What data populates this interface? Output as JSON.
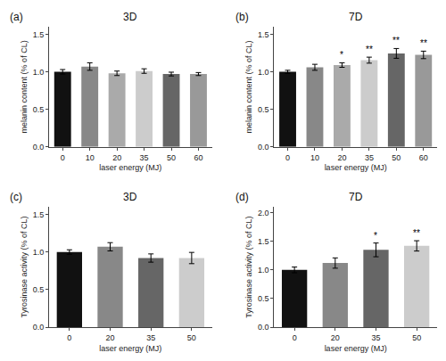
{
  "chart_data": [
    {
      "type": "bar",
      "title": "3D",
      "subtitle": "(a)",
      "xlabel": "laser energy (MJ)",
      "ylabel": "melanin content (% of CL)",
      "categories": [
        "0",
        "10",
        "20",
        "35",
        "50",
        "60"
      ],
      "values": [
        1.0,
        1.07,
        0.98,
        1.01,
        0.97,
        0.97
      ],
      "errors": [
        0.03,
        0.05,
        0.03,
        0.03,
        0.025,
        0.02
      ],
      "colors": [
        "#111111",
        "#888888",
        "#aaaaaa",
        "#cccccc",
        "#666666",
        "#999999"
      ],
      "annotations": [],
      "ylim": [
        0,
        1.6
      ],
      "yticks": [
        {
          "value": 0,
          "label": "0.0"
        },
        0.5,
        {
          "value": 1,
          "label": "1.0"
        },
        1.5
      ],
      "grid": false
    },
    {
      "type": "bar",
      "title": "7D",
      "subtitle": "(b)",
      "xlabel": "laser energy (MJ)",
      "ylabel": "melanin content (% of CL)",
      "categories": [
        "0",
        "10",
        "20",
        "35",
        "50",
        "60"
      ],
      "values": [
        1.0,
        1.06,
        1.09,
        1.155,
        1.245,
        1.225
      ],
      "errors": [
        0.02,
        0.04,
        0.03,
        0.04,
        0.065,
        0.05
      ],
      "colors": [
        "#111111",
        "#888888",
        "#aaaaaa",
        "#cccccc",
        "#666666",
        "#999999"
      ],
      "annotations": [
        {
          "text": "*",
          "category": "20"
        },
        {
          "text": "**",
          "category": "35"
        },
        {
          "text": "**",
          "category": "50"
        },
        {
          "text": "**",
          "category": "60"
        }
      ],
      "ylim": [
        0,
        1.6
      ],
      "yticks": [
        {
          "value": 0,
          "label": "0.0"
        },
        0.5,
        {
          "value": 1,
          "label": "1.0"
        },
        1.5
      ],
      "grid": false
    },
    {
      "type": "bar",
      "title": "3D",
      "subtitle": "(c)",
      "xlabel": "laser energy (MJ)",
      "ylabel": "Tyrosinase activity (% of CL)",
      "categories": [
        "0",
        "20",
        "35",
        "50"
      ],
      "values": [
        1.0,
        1.07,
        0.92,
        0.92
      ],
      "errors": [
        0.03,
        0.055,
        0.055,
        0.075
      ],
      "colors": [
        "#111111",
        "#888888",
        "#666666",
        "#cccccc"
      ],
      "annotations": [],
      "ylim": [
        0,
        1.6
      ],
      "yticks": [
        {
          "value": 0,
          "label": "0.0"
        },
        0.5,
        {
          "value": 1,
          "label": "1.0"
        },
        1.5
      ],
      "grid": false
    },
    {
      "type": "bar",
      "title": "7D",
      "subtitle": "(d)",
      "xlabel": "laser energy (MJ)",
      "ylabel": "Tyrosinase activity (% of CL)",
      "categories": [
        "0",
        "20",
        "35",
        "50"
      ],
      "values": [
        1.0,
        1.12,
        1.35,
        1.42
      ],
      "errors": [
        0.05,
        0.09,
        0.12,
        0.09
      ],
      "colors": [
        "#111111",
        "#888888",
        "#666666",
        "#cccccc"
      ],
      "annotations": [
        {
          "text": "*",
          "category": "35"
        },
        {
          "text": "**",
          "category": "50"
        }
      ],
      "ylim": [
        0,
        2.1
      ],
      "yticks": [
        {
          "value": 0,
          "label": "0.0"
        },
        0.5,
        {
          "value": 1,
          "label": "1.0"
        },
        1.5,
        {
          "value": 2,
          "label": "2.0"
        }
      ],
      "grid": false
    }
  ]
}
